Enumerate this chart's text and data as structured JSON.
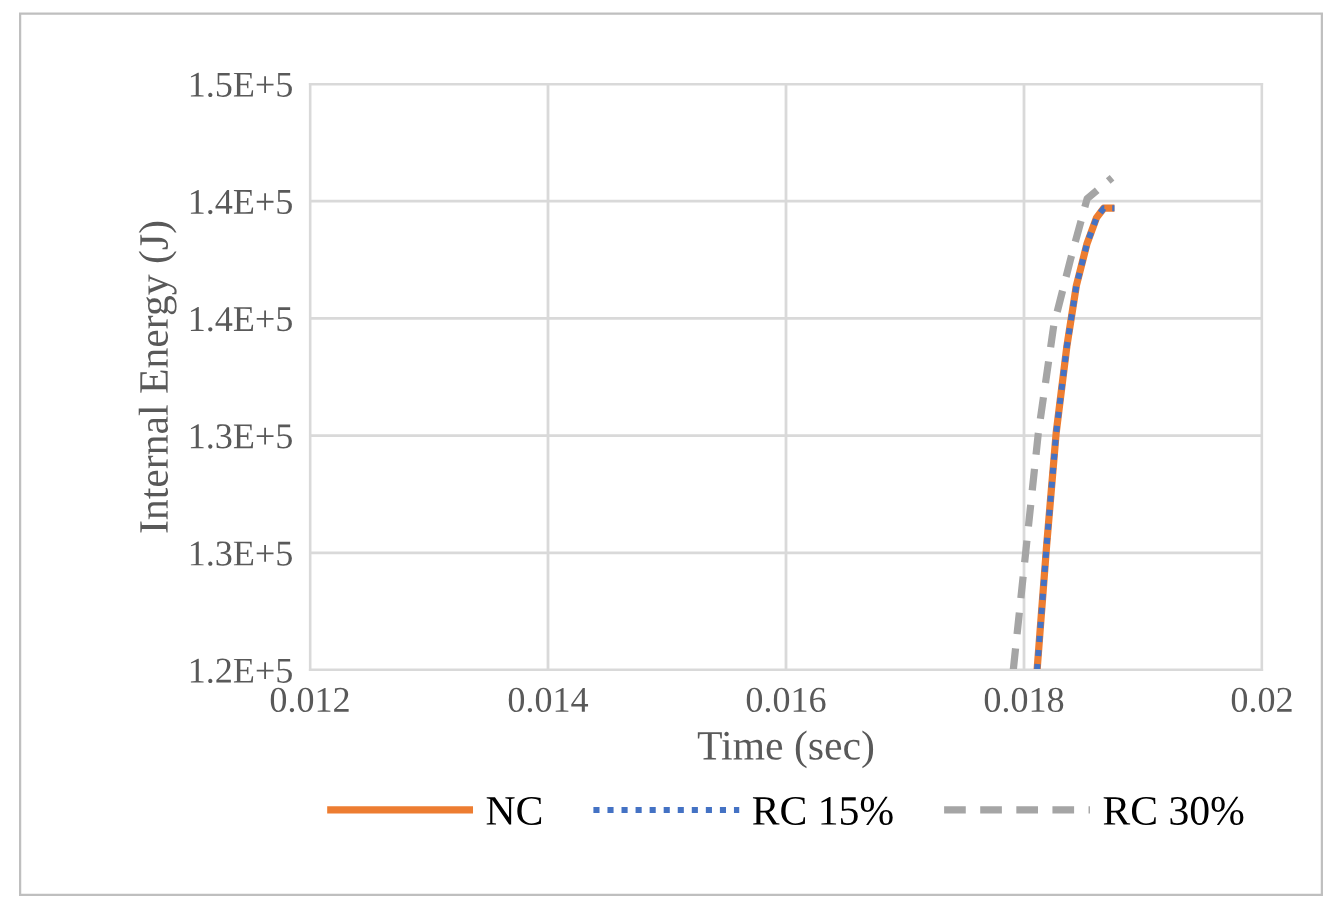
{
  "chart_data": {
    "type": "line",
    "xlabel": "Time (sec)",
    "ylabel": "Internal Energy (J)",
    "xlim": [
      0.012,
      0.02
    ],
    "xticks": [
      0.012,
      0.014,
      0.016,
      0.018,
      0.02
    ],
    "ylim": [
      120000,
      145000
    ],
    "yticks": [
      {
        "value": 120000,
        "label": "1.2E+5"
      },
      {
        "value": 125000,
        "label": "1.3E+5"
      },
      {
        "value": 130000,
        "label": "1.3E+5"
      },
      {
        "value": 135000,
        "label": "1.4E+5"
      },
      {
        "value": 140000,
        "label": "1.4E+5"
      },
      {
        "value": 145000,
        "label": "1.5E+5"
      }
    ],
    "grid": true,
    "legend": "bottom",
    "series": [
      {
        "name": "NC",
        "color": "#ed7d31",
        "line_style": "solid",
        "x": [
          0.01811,
          0.01819,
          0.01827,
          0.01836,
          0.01844,
          0.01853,
          0.01861,
          0.01867,
          0.01876
        ],
        "values": [
          120000,
          125300,
          130100,
          133800,
          136400,
          138200,
          139300,
          139700,
          139700
        ]
      },
      {
        "name": "RC 15%",
        "color": "#4472c4",
        "line_style": "dotted",
        "x": [
          0.01811,
          0.01819,
          0.01827,
          0.01836,
          0.01844,
          0.01853,
          0.01861,
          0.01867,
          0.01876
        ],
        "values": [
          120000,
          125300,
          130100,
          133800,
          136400,
          138200,
          139300,
          139700,
          139700
        ]
      },
      {
        "name": "RC 30%",
        "color": "#a5a5a5",
        "line_style": "dashed",
        "x": [
          0.01791,
          0.01802,
          0.01812,
          0.01825,
          0.01839,
          0.01853,
          0.01874
        ],
        "values": [
          120000,
          125300,
          130100,
          134700,
          137500,
          140100,
          141000
        ]
      }
    ]
  }
}
